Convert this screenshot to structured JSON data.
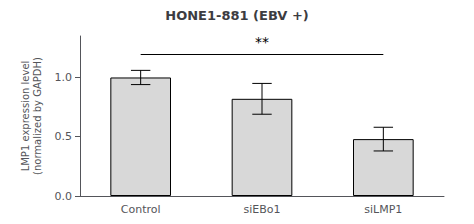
{
  "chart_data": {
    "type": "bar",
    "title": "HONE1-881 (EBV +)",
    "ylabel": "LMP1 expression level\n(normalized by GAPDH)",
    "categories": [
      "Control",
      "siEBo1",
      "siLMP1"
    ],
    "values": [
      1.0,
      0.82,
      0.48
    ],
    "errors": [
      0.06,
      0.13,
      0.1
    ],
    "color": "#d8d8d8",
    "ylim": [
      0,
      1.35
    ],
    "yticks": [
      {
        "value": 0,
        "label": "0.0"
      },
      0.5,
      {
        "value": 1,
        "label": "1.0"
      }
    ],
    "grid": false,
    "annotations": [
      {
        "text": "**",
        "from": "Control",
        "to": "siLMP1",
        "y": 1.2
      }
    ]
  }
}
